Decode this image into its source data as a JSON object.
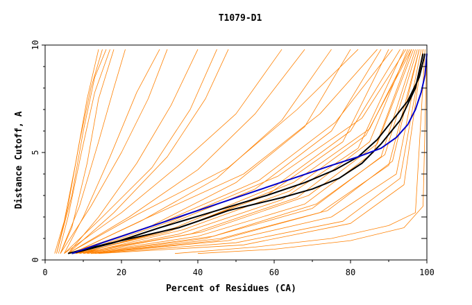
{
  "chart_data": {
    "type": "line",
    "title": "T1079-D1",
    "xlabel": "Percent of Residues (CA)",
    "ylabel": "Distance Cutoff, A",
    "xlim": [
      0,
      100
    ],
    "ylim": [
      0,
      10
    ],
    "x_ticks": [
      0,
      20,
      40,
      60,
      80,
      100
    ],
    "y_ticks": [
      0,
      5,
      10
    ],
    "grid": false,
    "colors": {
      "background_models": "#ff8000",
      "highlight_black": "#000000",
      "highlight_blue": "#0000cc"
    },
    "background_series": [
      {
        "x": [
          3,
          6,
          9,
          12,
          15
        ],
        "y": [
          0.3,
          2.5,
          5.5,
          8.0,
          9.8
        ]
      },
      {
        "x": [
          3,
          7,
          10,
          13,
          16
        ],
        "y": [
          0.3,
          3.0,
          6.0,
          8.5,
          9.8
        ]
      },
      {
        "x": [
          2.5,
          5,
          8,
          11,
          14
        ],
        "y": [
          0.3,
          1.8,
          4.5,
          7.5,
          9.8
        ]
      },
      {
        "x": [
          3.5,
          6,
          9.5,
          13,
          17
        ],
        "y": [
          0.3,
          2.0,
          5.0,
          7.8,
          9.8
        ]
      },
      {
        "x": [
          4,
          7,
          11,
          14,
          18
        ],
        "y": [
          0.3,
          1.5,
          4.5,
          7.5,
          9.8
        ]
      },
      {
        "x": [
          4,
          9,
          14,
          18,
          21
        ],
        "y": [
          0.3,
          2.5,
          5.5,
          8.0,
          9.8
        ]
      },
      {
        "x": [
          4,
          12,
          20,
          27,
          32
        ],
        "y": [
          0.3,
          2.5,
          5.0,
          7.5,
          9.8
        ]
      },
      {
        "x": [
          5,
          10,
          17,
          24,
          30
        ],
        "y": [
          0.3,
          2.0,
          4.8,
          7.8,
          9.8
        ]
      },
      {
        "x": [
          6,
          14,
          24,
          33,
          40
        ],
        "y": [
          0.3,
          2.0,
          4.5,
          7.2,
          9.8
        ]
      },
      {
        "x": [
          5,
          15,
          28,
          38,
          45
        ],
        "y": [
          0.3,
          2.0,
          4.3,
          7.0,
          9.8
        ]
      },
      {
        "x": [
          6,
          18,
          32,
          42,
          48
        ],
        "y": [
          0.3,
          2.2,
          4.8,
          7.5,
          9.8
        ]
      },
      {
        "x": [
          5,
          20,
          35,
          50,
          62
        ],
        "y": [
          0.3,
          2.2,
          4.4,
          6.8,
          9.8
        ]
      },
      {
        "x": [
          6,
          22,
          40,
          55,
          68
        ],
        "y": [
          0.3,
          2.0,
          4.2,
          6.8,
          9.8
        ]
      },
      {
        "x": [
          7,
          25,
          45,
          62,
          75
        ],
        "y": [
          0.3,
          1.8,
          3.8,
          6.5,
          9.8
        ]
      },
      {
        "x": [
          6,
          28,
          50,
          68,
          80
        ],
        "y": [
          0.3,
          1.6,
          3.6,
          6.2,
          9.8
        ]
      },
      {
        "x": [
          8,
          30,
          55,
          75,
          88
        ],
        "y": [
          0.3,
          1.5,
          3.3,
          6.0,
          9.8
        ]
      },
      {
        "x": [
          8,
          32,
          58,
          78,
          90
        ],
        "y": [
          0.3,
          1.3,
          3.0,
          5.5,
          9.8
        ]
      },
      {
        "x": [
          9,
          35,
          62,
          82,
          94
        ],
        "y": [
          0.3,
          1.2,
          2.8,
          5.2,
          9.8
        ]
      },
      {
        "x": [
          10,
          40,
          68,
          86,
          96
        ],
        "y": [
          0.3,
          1.1,
          2.6,
          5.0,
          9.8
        ]
      },
      {
        "x": [
          8,
          38,
          66,
          85,
          95
        ],
        "y": [
          0.3,
          1.2,
          2.9,
          5.5,
          9.8
        ]
      },
      {
        "x": [
          11,
          42,
          70,
          88,
          97
        ],
        "y": [
          0.3,
          1.0,
          2.4,
          4.8,
          9.8
        ]
      },
      {
        "x": [
          12,
          45,
          72,
          90,
          98
        ],
        "y": [
          0.3,
          0.9,
          2.2,
          4.4,
          9.8
        ]
      },
      {
        "x": [
          12,
          48,
          75,
          92,
          98.5
        ],
        "y": [
          0.3,
          0.9,
          2.0,
          4.0,
          9.8
        ]
      },
      {
        "x": [
          13,
          50,
          78,
          93,
          99
        ],
        "y": [
          0.3,
          0.8,
          1.8,
          3.8,
          9.8
        ]
      },
      {
        "x": [
          10,
          36,
          64,
          84,
          96
        ],
        "y": [
          0.3,
          1.4,
          3.2,
          5.8,
          9.8
        ]
      },
      {
        "x": [
          9,
          34,
          60,
          80,
          93
        ],
        "y": [
          0.3,
          1.5,
          3.4,
          6.0,
          9.8
        ]
      },
      {
        "x": [
          7,
          30,
          56,
          76,
          91
        ],
        "y": [
          0.3,
          1.7,
          3.7,
          6.4,
          9.8
        ]
      },
      {
        "x": [
          7,
          26,
          52,
          72,
          87
        ],
        "y": [
          0.3,
          1.9,
          4.0,
          6.8,
          9.8
        ]
      },
      {
        "x": [
          6,
          24,
          48,
          66,
          82
        ],
        "y": [
          0.3,
          2.1,
          4.3,
          7.0,
          9.8
        ]
      },
      {
        "x": [
          11,
          44,
          71,
          89,
          97.5
        ],
        "y": [
          0.3,
          1.1,
          2.6,
          4.9,
          9.8
        ]
      },
      {
        "x": [
          14,
          52,
          80,
          94,
          99
        ],
        "y": [
          0.3,
          0.7,
          1.7,
          3.5,
          9.8
        ]
      },
      {
        "x": [
          10,
          41,
          69,
          87,
          96.5
        ],
        "y": [
          0.3,
          1.3,
          3.0,
          5.4,
          9.8
        ]
      },
      {
        "x": [
          9,
          37,
          65,
          85,
          95.5
        ],
        "y": [
          0.3,
          1.6,
          3.6,
          6.1,
          9.8
        ]
      },
      {
        "x": [
          8,
          33,
          61,
          83,
          94.5
        ],
        "y": [
          0.3,
          1.8,
          3.9,
          6.6,
          9.8
        ]
      },
      {
        "x": [
          12,
          46,
          74,
          91,
          98
        ],
        "y": [
          0.3,
          1.0,
          2.3,
          4.6,
          9.8
        ]
      },
      {
        "x": [
          34,
          55,
          75,
          90,
          97,
          99.5
        ],
        "y": [
          0.3,
          0.6,
          1.0,
          1.6,
          2.2,
          9.8
        ]
      },
      {
        "x": [
          40,
          60,
          80,
          94,
          99,
          100
        ],
        "y": [
          0.3,
          0.5,
          0.9,
          1.5,
          2.5,
          9.8
        ]
      }
    ],
    "series": [
      {
        "color": "#000000",
        "x": [
          6,
          15,
          25,
          35,
          40,
          48,
          55,
          62,
          70,
          77,
          83,
          88,
          93,
          97,
          99
        ],
        "y": [
          0.3,
          0.7,
          1.1,
          1.5,
          1.8,
          2.3,
          2.6,
          2.9,
          3.3,
          3.8,
          4.5,
          5.4,
          6.5,
          8.0,
          9.6
        ]
      },
      {
        "color": "#000000",
        "x": [
          7,
          18,
          30,
          45,
          58,
          68,
          76,
          82,
          87,
          91,
          95,
          98,
          99.5
        ],
        "y": [
          0.3,
          0.8,
          1.5,
          2.3,
          3.0,
          3.6,
          4.2,
          4.8,
          5.6,
          6.5,
          7.4,
          8.5,
          9.6
        ]
      },
      {
        "color": "#0000cc",
        "x": [
          7,
          15,
          25,
          35,
          45,
          55,
          65,
          75,
          82,
          88,
          92,
          95,
          97,
          98.5,
          99.5,
          100
        ],
        "y": [
          0.3,
          0.8,
          1.4,
          2.0,
          2.6,
          3.2,
          3.8,
          4.4,
          4.8,
          5.2,
          5.7,
          6.3,
          7.0,
          7.8,
          8.6,
          9.6
        ]
      }
    ]
  }
}
